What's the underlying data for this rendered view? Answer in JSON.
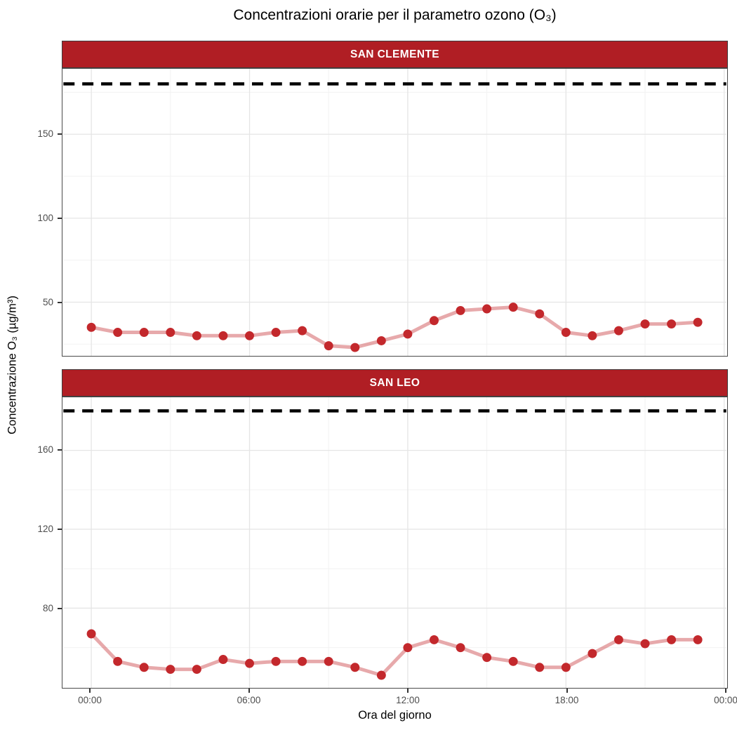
{
  "chart_data": {
    "type": "line",
    "title": "Concentrazioni orarie per il parametro ozono (O₃)",
    "xlabel": "Ora del giorno",
    "ylabel": "Concentrazione O₃ (µg/m³)",
    "legend": "none",
    "grid": "on",
    "hours": [
      0,
      1,
      2,
      3,
      4,
      5,
      6,
      7,
      8,
      9,
      10,
      11,
      12,
      13,
      14,
      15,
      16,
      17,
      18,
      19,
      20,
      21,
      22,
      23
    ],
    "x_tick_labels": [
      "00:00",
      "06:00",
      "12:00",
      "18:00",
      "00:00"
    ],
    "x_major_ticks": [
      0,
      6,
      12,
      18,
      24
    ],
    "x_minor_ticks": [
      3,
      9,
      15,
      21
    ],
    "threshold": {
      "value": 180,
      "style": "dashed",
      "color": "#000000"
    },
    "series_color": "#c3282c",
    "line_color": "rgba(195,40,44,0.40)",
    "strip_color": "#b01e24",
    "panels": [
      {
        "label": "SAN CLEMENTE",
        "ylim": [
          18,
          189
        ],
        "y_major_ticks": [
          50,
          100,
          150
        ],
        "y_minor_ticks": [
          25,
          75,
          125,
          175
        ],
        "values": [
          35,
          32,
          32,
          32,
          30,
          30,
          30,
          32,
          33,
          24,
          23,
          27,
          31,
          39,
          45,
          46,
          47,
          43,
          32,
          30,
          33,
          37,
          37,
          38
        ]
      },
      {
        "label": "SAN LEO",
        "ylim": [
          39.6,
          186.9
        ],
        "y_major_ticks": [
          80,
          120,
          160
        ],
        "y_minor_ticks": [
          60,
          100,
          140,
          180
        ],
        "values": [
          67,
          53,
          50,
          49,
          49,
          54,
          52,
          53,
          53,
          53,
          50,
          46,
          60,
          64,
          60,
          55,
          53,
          50,
          50,
          57,
          64,
          62,
          64,
          64
        ]
      }
    ]
  }
}
